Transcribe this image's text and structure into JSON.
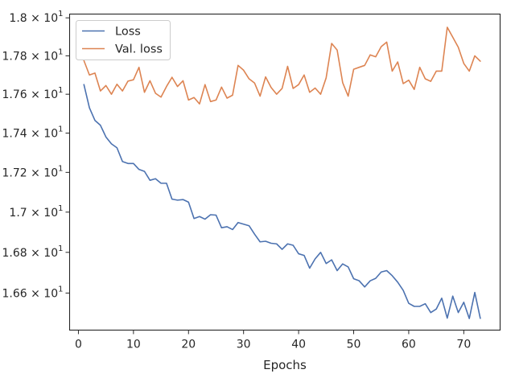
{
  "chart_data": {
    "type": "line",
    "title": "",
    "xlabel": "Epochs",
    "ylabel": "",
    "xlim": [
      -1.6,
      76.6
    ],
    "ylim": [
      16.42,
      18.02
    ],
    "x_ticks": [
      0,
      10,
      20,
      30,
      40,
      50,
      60,
      70
    ],
    "x_tick_labels": [
      "0",
      "10",
      "20",
      "30",
      "40",
      "50",
      "60",
      "70"
    ],
    "y_ticks": [
      16.6,
      16.8,
      17.0,
      17.2,
      17.4,
      17.6,
      17.8,
      18.0
    ],
    "y_tick_labels": [
      {
        "mantissa": "1.66",
        "sep": " × ",
        "base": "10",
        "exp": "1"
      },
      {
        "mantissa": "1.68",
        "sep": " × ",
        "base": "10",
        "exp": "1"
      },
      {
        "mantissa": "1.7",
        "sep": " × ",
        "base": "10",
        "exp": "1"
      },
      {
        "mantissa": "1.72",
        "sep": " × ",
        "base": "10",
        "exp": "1"
      },
      {
        "mantissa": "1.74",
        "sep": " × ",
        "base": "10",
        "exp": "1"
      },
      {
        "mantissa": "1.76",
        "sep": " × ",
        "base": "10",
        "exp": "1"
      },
      {
        "mantissa": "1.78",
        "sep": " × ",
        "base": "10",
        "exp": "1"
      },
      {
        "mantissa": "1.8",
        "sep": " × ",
        "base": "10",
        "exp": "1"
      }
    ],
    "y_scale": "log",
    "grid": false,
    "legend_position": "upper-left",
    "x": [
      1,
      2,
      3,
      4,
      5,
      6,
      7,
      8,
      9,
      10,
      11,
      12,
      13,
      14,
      15,
      16,
      17,
      18,
      19,
      20,
      21,
      22,
      23,
      24,
      25,
      26,
      27,
      28,
      29,
      30,
      31,
      32,
      33,
      34,
      35,
      36,
      37,
      38,
      39,
      40,
      41,
      42,
      43,
      44,
      45,
      46,
      47,
      48,
      49,
      50,
      51,
      52,
      53,
      54,
      55,
      56,
      57,
      58,
      59,
      60,
      61,
      62,
      63,
      64,
      65,
      66,
      67,
      68,
      69,
      70,
      71,
      72,
      73
    ],
    "series": [
      {
        "name": "Loss",
        "color": "#4c72b0",
        "values": [
          17.65,
          17.53,
          17.465,
          17.44,
          17.38,
          17.345,
          17.325,
          17.255,
          17.245,
          17.245,
          17.215,
          17.205,
          17.16,
          17.168,
          17.145,
          17.145,
          17.065,
          17.06,
          17.063,
          17.05,
          16.968,
          16.978,
          16.965,
          16.987,
          16.985,
          16.922,
          16.927,
          16.913,
          16.948,
          16.94,
          16.932,
          16.89,
          16.852,
          16.855,
          16.845,
          16.842,
          16.815,
          16.842,
          16.835,
          16.793,
          16.785,
          16.722,
          16.768,
          16.8,
          16.745,
          16.763,
          16.71,
          16.743,
          16.728,
          16.67,
          16.66,
          16.63,
          16.66,
          16.672,
          16.703,
          16.71,
          16.685,
          16.653,
          16.613,
          16.55,
          16.535,
          16.535,
          16.548,
          16.505,
          16.522,
          16.575,
          16.478,
          16.585,
          16.505,
          16.555,
          16.476,
          16.603,
          16.477
        ]
      },
      {
        "name": "Val. loss",
        "color": "#dd8452",
        "values": [
          17.775,
          17.7,
          17.71,
          17.617,
          17.645,
          17.6,
          17.652,
          17.617,
          17.668,
          17.675,
          17.74,
          17.61,
          17.67,
          17.605,
          17.585,
          17.64,
          17.688,
          17.64,
          17.67,
          17.57,
          17.583,
          17.55,
          17.65,
          17.562,
          17.57,
          17.637,
          17.58,
          17.595,
          17.75,
          17.725,
          17.68,
          17.658,
          17.59,
          17.69,
          17.635,
          17.6,
          17.63,
          17.745,
          17.63,
          17.65,
          17.7,
          17.61,
          17.632,
          17.6,
          17.685,
          17.865,
          17.83,
          17.66,
          17.59,
          17.73,
          17.74,
          17.75,
          17.805,
          17.795,
          17.848,
          17.872,
          17.72,
          17.768,
          17.655,
          17.673,
          17.625,
          17.74,
          17.68,
          17.667,
          17.72,
          17.72,
          17.95,
          17.898,
          17.845,
          17.76,
          17.72,
          17.8,
          17.772
        ]
      }
    ]
  },
  "colors": {
    "loss": "#4c72b0",
    "val_loss": "#dd8452",
    "axes": "#262626",
    "background": "#ffffff"
  }
}
